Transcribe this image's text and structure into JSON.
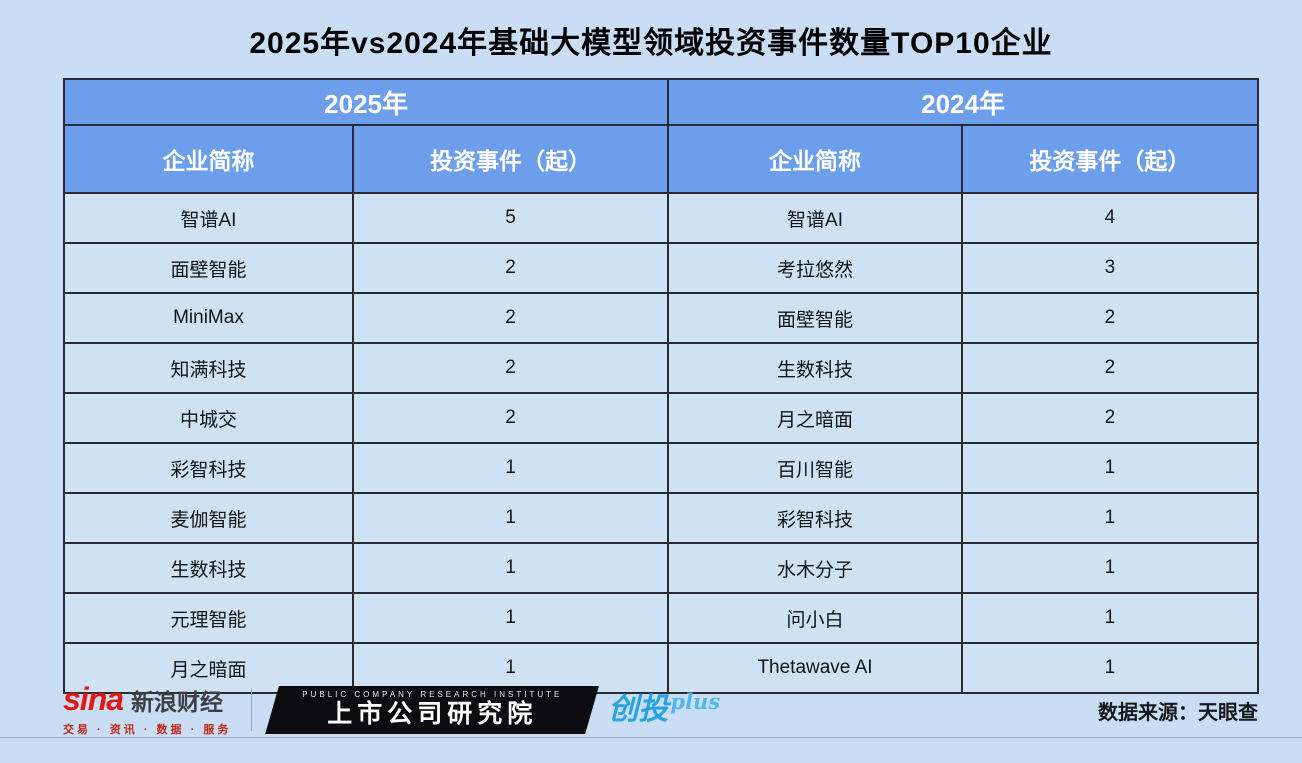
{
  "page": {
    "title": "2025年vs2024年基础大模型领域投资事件数量TOP10企业"
  },
  "table": {
    "group_headers": [
      "2025年",
      "2024年"
    ],
    "column_headers": [
      "企业简称",
      "投资事件（起）",
      "企业简称",
      "投资事件（起）"
    ],
    "rows": [
      [
        "智谱AI",
        "5",
        "智谱AI",
        "4"
      ],
      [
        "面壁智能",
        "2",
        "考拉悠然",
        "3"
      ],
      [
        "MiniMax",
        "2",
        "面壁智能",
        "2"
      ],
      [
        "知满科技",
        "2",
        "生数科技",
        "2"
      ],
      [
        "中城交",
        "2",
        "月之暗面",
        "2"
      ],
      [
        "彩智科技",
        "1",
        "百川智能",
        "1"
      ],
      [
        "麦伽智能",
        "1",
        "彩智科技",
        "1"
      ],
      [
        "生数科技",
        "1",
        "水木分子",
        "1"
      ],
      [
        "元理智能",
        "1",
        "问小白",
        "1"
      ],
      [
        "月之暗面",
        "1",
        "Thetawave AI",
        "1"
      ]
    ]
  },
  "footer": {
    "sina_logo": "sina",
    "sina_brand": "新浪财经",
    "sina_tagline": "交易 · 资讯 · 数据 · 服务",
    "institute_en": "PUBLIC COMPANY RESEARCH INSTITUTE",
    "institute_cn": "上市公司研究院",
    "plus_brand_cn": "创投",
    "plus_brand_suffix": "plus",
    "source": "数据来源：天眼查"
  },
  "colors": {
    "page_bg": "#c9def5",
    "header_bg": "#6d9eeb",
    "cell_bg": "#cfe2f3",
    "border": "#272b33",
    "sina_red": "#e3170d",
    "plus_blue": "#29a3e0"
  },
  "chart_data": {
    "type": "table",
    "title": "2025年vs2024年基础大模型领域投资事件数量TOP10企业",
    "groups": [
      {
        "year": "2025年",
        "columns": [
          "企业简称",
          "投资事件（起）"
        ],
        "rows": [
          [
            "智谱AI",
            5
          ],
          [
            "面壁智能",
            2
          ],
          [
            "MiniMax",
            2
          ],
          [
            "知满科技",
            2
          ],
          [
            "中城交",
            2
          ],
          [
            "彩智科技",
            1
          ],
          [
            "麦伽智能",
            1
          ],
          [
            "生数科技",
            1
          ],
          [
            "元理智能",
            1
          ],
          [
            "月之暗面",
            1
          ]
        ]
      },
      {
        "year": "2024年",
        "columns": [
          "企业简称",
          "投资事件（起）"
        ],
        "rows": [
          [
            "智谱AI",
            4
          ],
          [
            "考拉悠然",
            3
          ],
          [
            "面壁智能",
            2
          ],
          [
            "生数科技",
            2
          ],
          [
            "月之暗面",
            2
          ],
          [
            "百川智能",
            1
          ],
          [
            "彩智科技",
            1
          ],
          [
            "水木分子",
            1
          ],
          [
            "问小白",
            1
          ],
          [
            "Thetawave AI",
            1
          ]
        ]
      }
    ],
    "source": "数据来源：天眼查"
  }
}
